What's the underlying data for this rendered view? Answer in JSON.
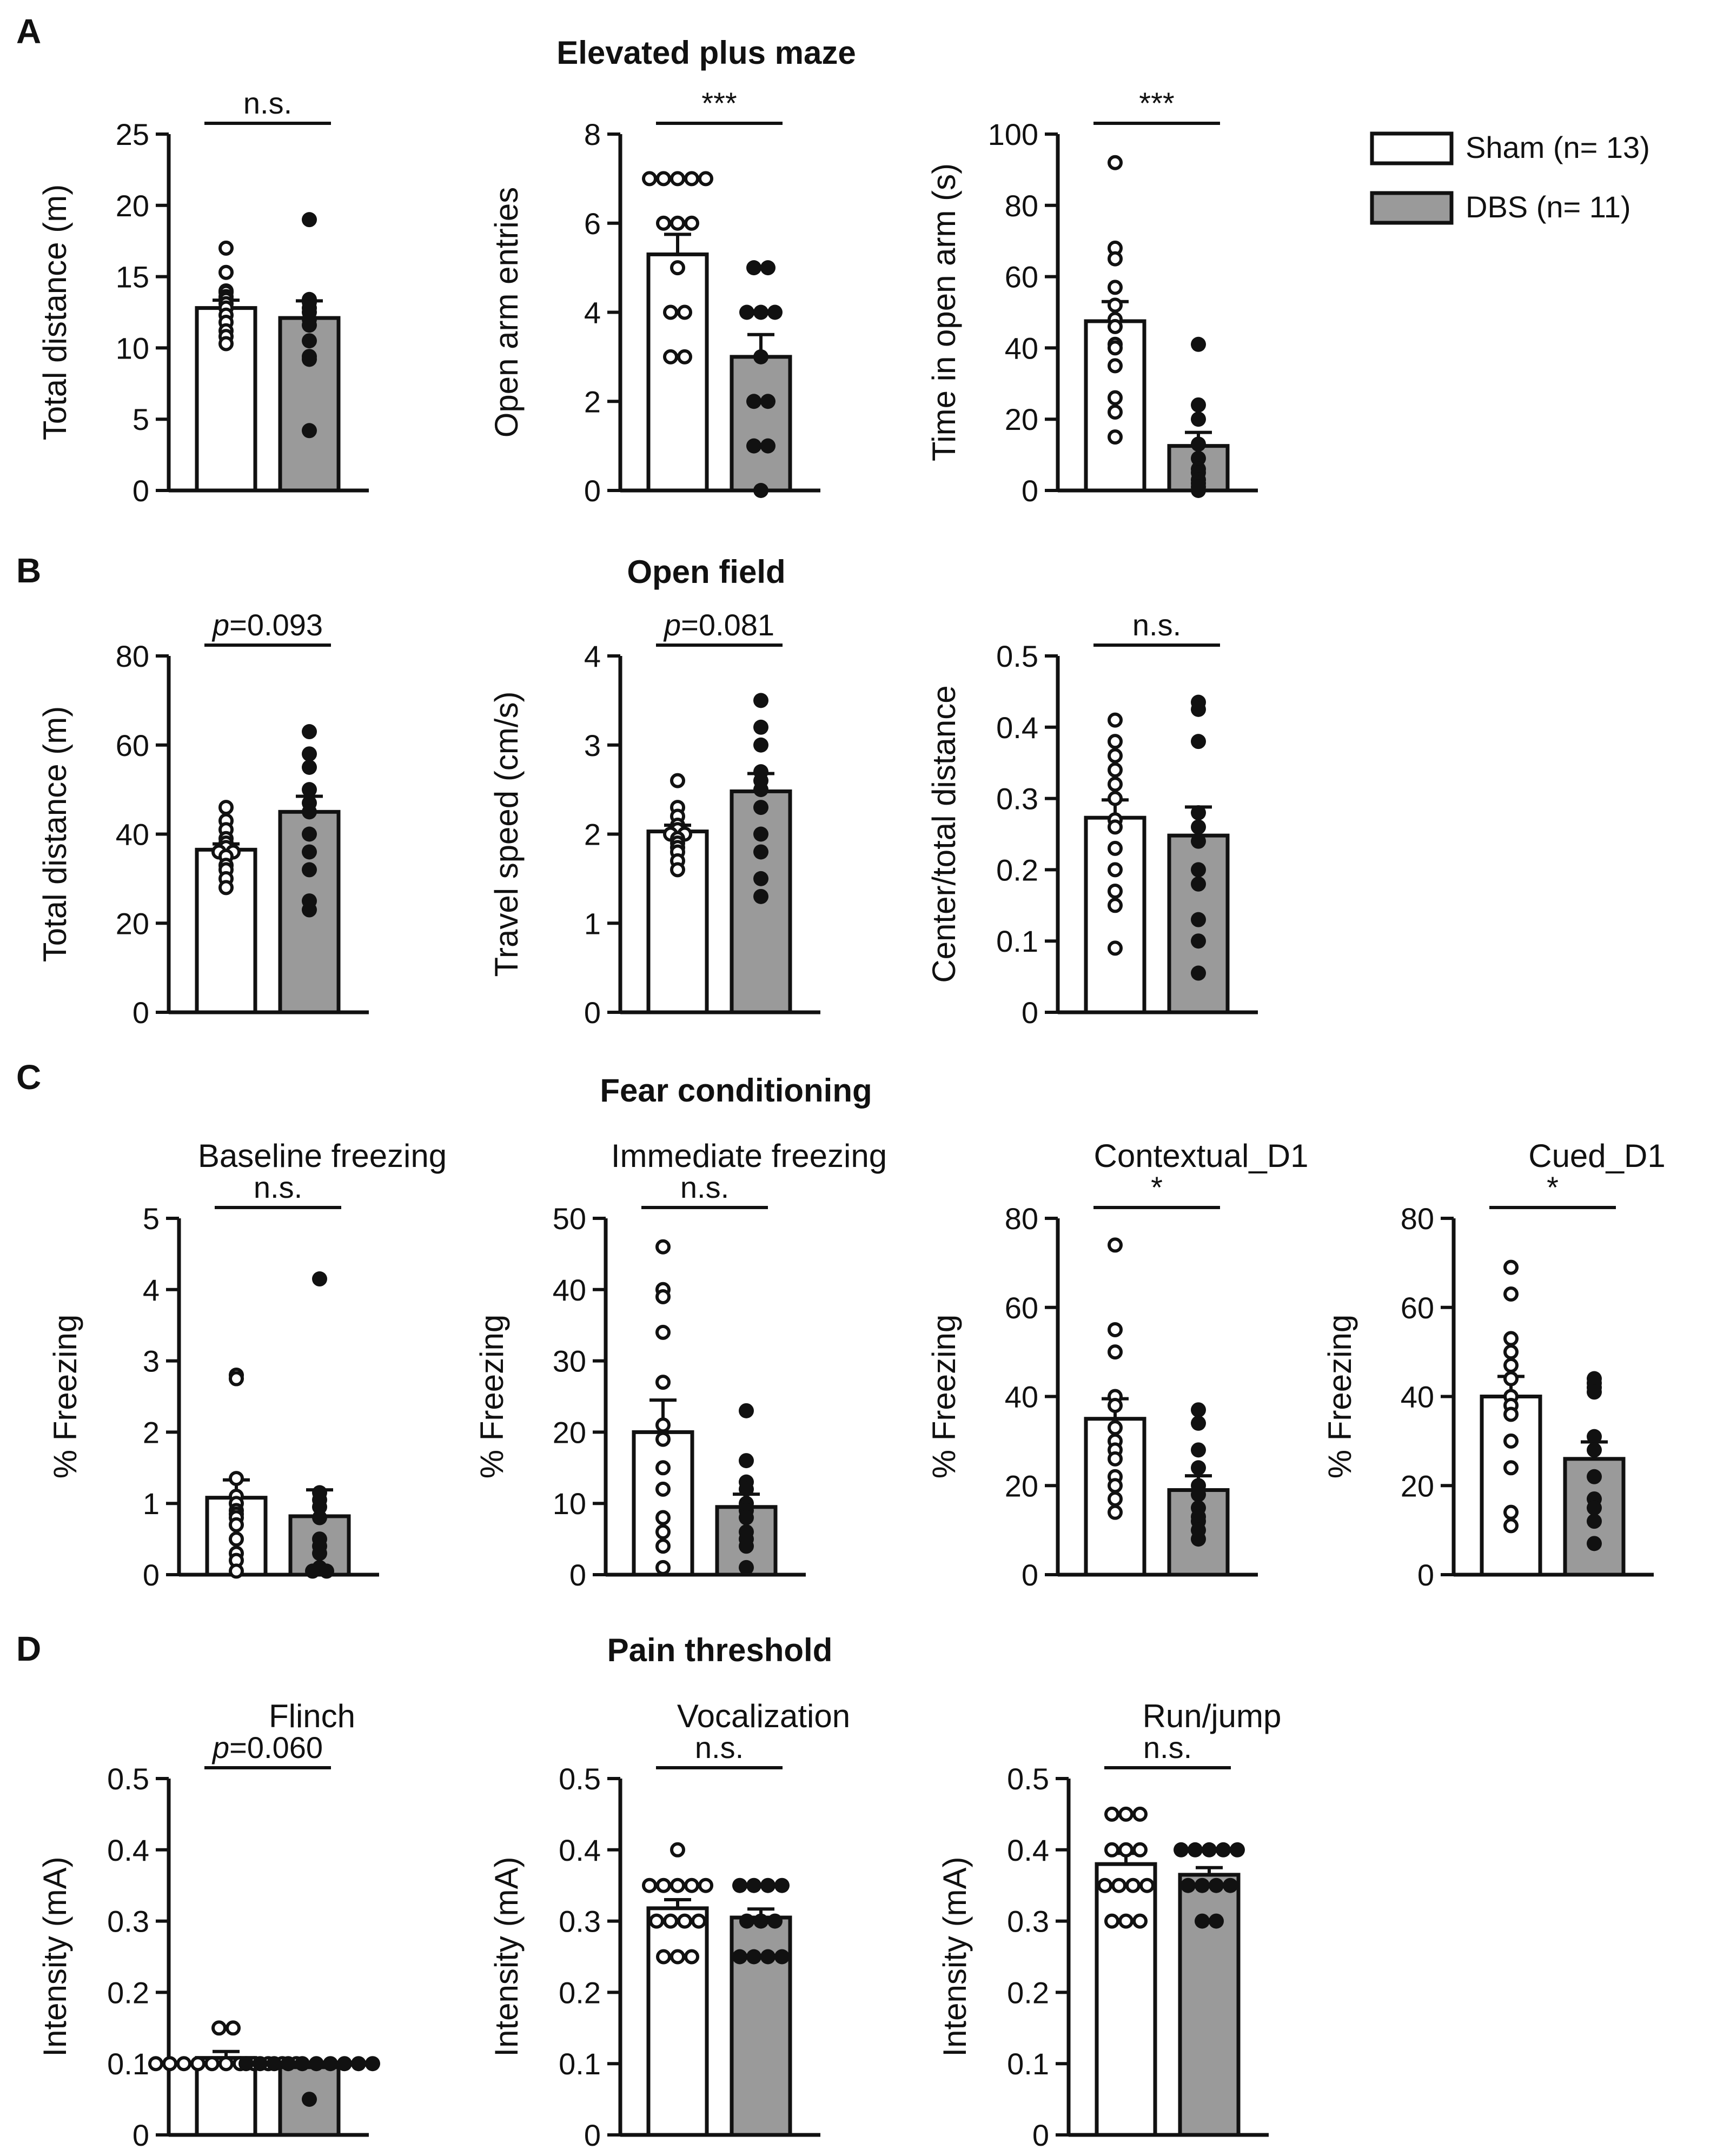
{
  "colors": {
    "sham": "#ffffff",
    "dbs": "#9a9a9a",
    "ink": "#111111"
  },
  "legend": [
    {
      "label": "Sham (n= 13)",
      "fill": "#ffffff"
    },
    {
      "label": "DBS (n= 11)",
      "fill": "#9a9a9a"
    }
  ],
  "chart_data": [
    {
      "panel": "A",
      "section_title": "Elevated plus maze",
      "subtitle": "",
      "type": "bar",
      "ylabel": "Total distance (m)",
      "ylim": [
        0,
        25
      ],
      "yticks": [
        "0",
        "5",
        "10",
        "15",
        "20",
        "25"
      ],
      "categories": [
        "Sham",
        "DBS"
      ],
      "series": [
        {
          "name": "Sham",
          "mean": 12.8,
          "sem": 0.55,
          "points": [
            17.0,
            15.3,
            14.0,
            13.9,
            13.6,
            13.4,
            13.1,
            12.8,
            12.3,
            11.8,
            11.2,
            10.8,
            10.3
          ]
        },
        {
          "name": "DBS",
          "mean": 12.1,
          "sem": 1.2,
          "points": [
            19.0,
            13.4,
            13.2,
            12.8,
            12.5,
            12.0,
            11.6,
            10.5,
            9.4,
            9.2,
            4.2
          ]
        }
      ],
      "annotation": "n.s."
    },
    {
      "panel": "",
      "section_title": "",
      "subtitle": "",
      "type": "bar",
      "ylabel": "Open arm entries",
      "ylim": [
        0,
        8
      ],
      "yticks": [
        "0",
        "2",
        "4",
        "6",
        "8"
      ],
      "categories": [
        "Sham",
        "DBS"
      ],
      "series": [
        {
          "name": "Sham",
          "mean": 5.3,
          "sem": 0.45,
          "points": [
            7,
            7,
            7,
            7,
            7,
            6,
            6,
            6,
            5,
            4,
            4,
            3,
            3
          ]
        },
        {
          "name": "DBS",
          "mean": 3.0,
          "sem": 0.5,
          "points": [
            5,
            5,
            4,
            4,
            4,
            3,
            2,
            2,
            1,
            1,
            0
          ]
        }
      ],
      "annotation": "***"
    },
    {
      "panel": "",
      "section_title": "",
      "subtitle": "",
      "type": "bar",
      "ylabel": "Time in open arm (s)",
      "ylim": [
        0,
        100
      ],
      "yticks": [
        "0",
        "20",
        "40",
        "60",
        "80",
        "100"
      ],
      "categories": [
        "Sham",
        "DBS"
      ],
      "series": [
        {
          "name": "Sham",
          "mean": 47.5,
          "sem": 5.5,
          "points": [
            92,
            68,
            65,
            57,
            52,
            48,
            46,
            41,
            40,
            35,
            26,
            22,
            15
          ]
        },
        {
          "name": "DBS",
          "mean": 12.5,
          "sem": 3.8,
          "points": [
            41,
            24,
            20,
            13,
            9,
            6,
            5,
            3,
            2,
            1,
            0
          ]
        }
      ],
      "annotation": "***"
    },
    {
      "panel": "B",
      "section_title": "Open field",
      "subtitle": "",
      "type": "bar",
      "ylabel": "Total distance (m)",
      "ylim": [
        0,
        80
      ],
      "yticks": [
        "0",
        "20",
        "40",
        "60",
        "80"
      ],
      "categories": [
        "Sham",
        "DBS"
      ],
      "series": [
        {
          "name": "Sham",
          "mean": 36.5,
          "sem": 1.3,
          "points": [
            46,
            43,
            41,
            39,
            38,
            37,
            36,
            36,
            35,
            33,
            32,
            30,
            28
          ]
        },
        {
          "name": "DBS",
          "mean": 45,
          "sem": 3.5,
          "points": [
            63,
            58,
            55,
            50,
            47,
            45,
            40,
            36,
            32,
            25,
            23
          ]
        }
      ],
      "annotation_prefix": "p",
      "annotation": "=0.093"
    },
    {
      "panel": "",
      "section_title": "",
      "subtitle": "",
      "type": "bar",
      "ylabel": "Travel speed (cm/s)",
      "ylim": [
        0,
        4
      ],
      "yticks": [
        "0",
        "1",
        "2",
        "3",
        "4"
      ],
      "categories": [
        "Sham",
        "DBS"
      ],
      "series": [
        {
          "name": "Sham",
          "mean": 2.03,
          "sem": 0.07,
          "points": [
            2.6,
            2.3,
            2.2,
            2.1,
            2.05,
            2.0,
            2.0,
            1.95,
            1.9,
            1.85,
            1.8,
            1.7,
            1.6
          ]
        },
        {
          "name": "DBS",
          "mean": 2.48,
          "sem": 0.2,
          "points": [
            3.5,
            3.2,
            3.0,
            2.7,
            2.6,
            2.5,
            2.3,
            2.0,
            1.8,
            1.5,
            1.3
          ]
        }
      ],
      "annotation_prefix": "p",
      "annotation": "=0.081"
    },
    {
      "panel": "",
      "section_title": "",
      "subtitle": "",
      "type": "bar",
      "ylabel": "Center/total distance",
      "ylim": [
        0,
        0.5
      ],
      "yticks": [
        "0",
        "0.1",
        "0.2",
        "0.3",
        "0.4",
        "0.5"
      ],
      "categories": [
        "Sham",
        "DBS"
      ],
      "series": [
        {
          "name": "Sham",
          "mean": 0.273,
          "sem": 0.025,
          "points": [
            0.41,
            0.38,
            0.36,
            0.34,
            0.32,
            0.3,
            0.27,
            0.26,
            0.23,
            0.2,
            0.17,
            0.15,
            0.09
          ]
        },
        {
          "name": "DBS",
          "mean": 0.248,
          "sem": 0.04,
          "points": [
            0.435,
            0.425,
            0.38,
            0.28,
            0.26,
            0.24,
            0.2,
            0.18,
            0.13,
            0.1,
            0.055
          ]
        }
      ],
      "annotation": "n.s."
    },
    {
      "panel": "C",
      "section_title": "Fear conditioning",
      "subtitle": "Baseline freezing",
      "type": "bar",
      "ylabel": "% Freezing",
      "ylim": [
        0,
        5
      ],
      "yticks": [
        "0",
        "1",
        "2",
        "3",
        "4",
        "5"
      ],
      "categories": [
        "Sham",
        "DBS"
      ],
      "series": [
        {
          "name": "Sham",
          "mean": 1.08,
          "sem": 0.25,
          "points": [
            2.8,
            2.75,
            1.35,
            1.1,
            1.0,
            0.9,
            0.85,
            0.8,
            0.7,
            0.5,
            0.3,
            0.2,
            0.05
          ]
        },
        {
          "name": "DBS",
          "mean": 0.82,
          "sem": 0.37,
          "points": [
            4.15,
            1.15,
            1.05,
            0.95,
            0.8,
            0.5,
            0.4,
            0.3,
            0.1,
            0.05,
            0.05
          ]
        }
      ],
      "annotation": "n.s."
    },
    {
      "panel": "",
      "section_title": "",
      "subtitle": "Immediate freezing",
      "type": "bar",
      "ylabel": "% Freezing",
      "ylim": [
        0,
        50
      ],
      "yticks": [
        "0",
        "10",
        "20",
        "30",
        "40",
        "50"
      ],
      "categories": [
        "Sham",
        "DBS"
      ],
      "series": [
        {
          "name": "Sham",
          "mean": 20,
          "sem": 4.5,
          "points": [
            46,
            40,
            39,
            34,
            27,
            21,
            19,
            15,
            12,
            8,
            6,
            4,
            1
          ]
        },
        {
          "name": "DBS",
          "mean": 9.5,
          "sem": 1.8,
          "points": [
            23,
            16,
            13,
            12,
            10,
            9,
            8,
            6,
            5,
            4,
            1
          ]
        }
      ],
      "annotation": "n.s."
    },
    {
      "panel": "",
      "section_title": "",
      "subtitle": "Contextual_D1",
      "type": "bar",
      "ylabel": "% Freezing",
      "ylim": [
        0,
        80
      ],
      "yticks": [
        "0",
        "20",
        "40",
        "60",
        "80"
      ],
      "categories": [
        "Sham",
        "DBS"
      ],
      "series": [
        {
          "name": "Sham",
          "mean": 35,
          "sem": 4.5,
          "points": [
            74,
            55,
            50,
            40,
            38,
            33,
            30,
            28,
            26,
            22,
            20,
            17,
            14
          ]
        },
        {
          "name": "DBS",
          "mean": 19,
          "sem": 3.2,
          "points": [
            37,
            34,
            28,
            24,
            20,
            18,
            15,
            13,
            12,
            10,
            8
          ]
        }
      ],
      "annotation": "*"
    },
    {
      "panel": "",
      "section_title": "",
      "subtitle": "Cued_D1",
      "type": "bar",
      "ylabel": "% Freezing",
      "ylim": [
        0,
        80
      ],
      "yticks": [
        "0",
        "20",
        "40",
        "60",
        "80"
      ],
      "categories": [
        "Sham",
        "DBS"
      ],
      "series": [
        {
          "name": "Sham",
          "mean": 40,
          "sem": 4.5,
          "points": [
            69,
            63,
            53,
            50,
            47,
            44,
            40,
            38,
            36,
            30,
            24,
            14,
            11
          ]
        },
        {
          "name": "DBS",
          "mean": 26,
          "sem": 3.8,
          "points": [
            44,
            43,
            42,
            41,
            31,
            28,
            22,
            17,
            15,
            12,
            7
          ]
        }
      ],
      "annotation": "*"
    },
    {
      "panel": "D",
      "section_title": "Pain threshold",
      "subtitle": "Flinch",
      "type": "bar",
      "ylabel": "Intensity (mA)",
      "ylim": [
        0,
        0.5
      ],
      "yticks": [
        "0",
        "0.1",
        "0.2",
        "0.3",
        "0.4",
        "0.5"
      ],
      "categories": [
        "Sham",
        "DBS"
      ],
      "series": [
        {
          "name": "Sham",
          "mean": 0.108,
          "sem": 0.009,
          "points": [
            0.15,
            0.15,
            0.1,
            0.1,
            0.1,
            0.1,
            0.1,
            0.1,
            0.1,
            0.1,
            0.1,
            0.1,
            0.1
          ]
        },
        {
          "name": "DBS",
          "mean": 0.095,
          "sem": 0.005,
          "points": [
            0.1,
            0.1,
            0.1,
            0.1,
            0.1,
            0.1,
            0.1,
            0.1,
            0.1,
            0.1,
            0.05
          ]
        }
      ],
      "annotation_prefix": "p",
      "annotation": "=0.060"
    },
    {
      "panel": "",
      "section_title": "",
      "subtitle": "Vocalization",
      "type": "bar",
      "ylabel": "Intensity (mA)",
      "ylim": [
        0,
        0.5
      ],
      "yticks": [
        "0",
        "0.1",
        "0.2",
        "0.3",
        "0.4",
        "0.5"
      ],
      "categories": [
        "Sham",
        "DBS"
      ],
      "series": [
        {
          "name": "Sham",
          "mean": 0.318,
          "sem": 0.012,
          "points": [
            0.4,
            0.35,
            0.35,
            0.35,
            0.35,
            0.35,
            0.3,
            0.3,
            0.3,
            0.3,
            0.25,
            0.25,
            0.25
          ]
        },
        {
          "name": "DBS",
          "mean": 0.305,
          "sem": 0.012,
          "points": [
            0.35,
            0.35,
            0.35,
            0.35,
            0.3,
            0.3,
            0.3,
            0.25,
            0.25,
            0.25,
            0.25
          ]
        }
      ],
      "annotation": "n.s."
    },
    {
      "panel": "",
      "section_title": "",
      "subtitle": "Run/jump",
      "type": "bar",
      "ylabel": "Intensity (mA)",
      "ylim": [
        0,
        0.5
      ],
      "yticks": [
        "0",
        "0.1",
        "0.2",
        "0.3",
        "0.4",
        "0.5"
      ],
      "categories": [
        "Sham",
        "DBS"
      ],
      "series": [
        {
          "name": "Sham",
          "mean": 0.38,
          "sem": 0.015,
          "points": [
            0.45,
            0.45,
            0.45,
            0.4,
            0.4,
            0.4,
            0.35,
            0.35,
            0.35,
            0.35,
            0.3,
            0.3,
            0.3
          ]
        },
        {
          "name": "DBS",
          "mean": 0.365,
          "sem": 0.01,
          "points": [
            0.4,
            0.4,
            0.4,
            0.4,
            0.4,
            0.35,
            0.35,
            0.35,
            0.35,
            0.3,
            0.3
          ]
        }
      ],
      "annotation": "n.s."
    }
  ]
}
